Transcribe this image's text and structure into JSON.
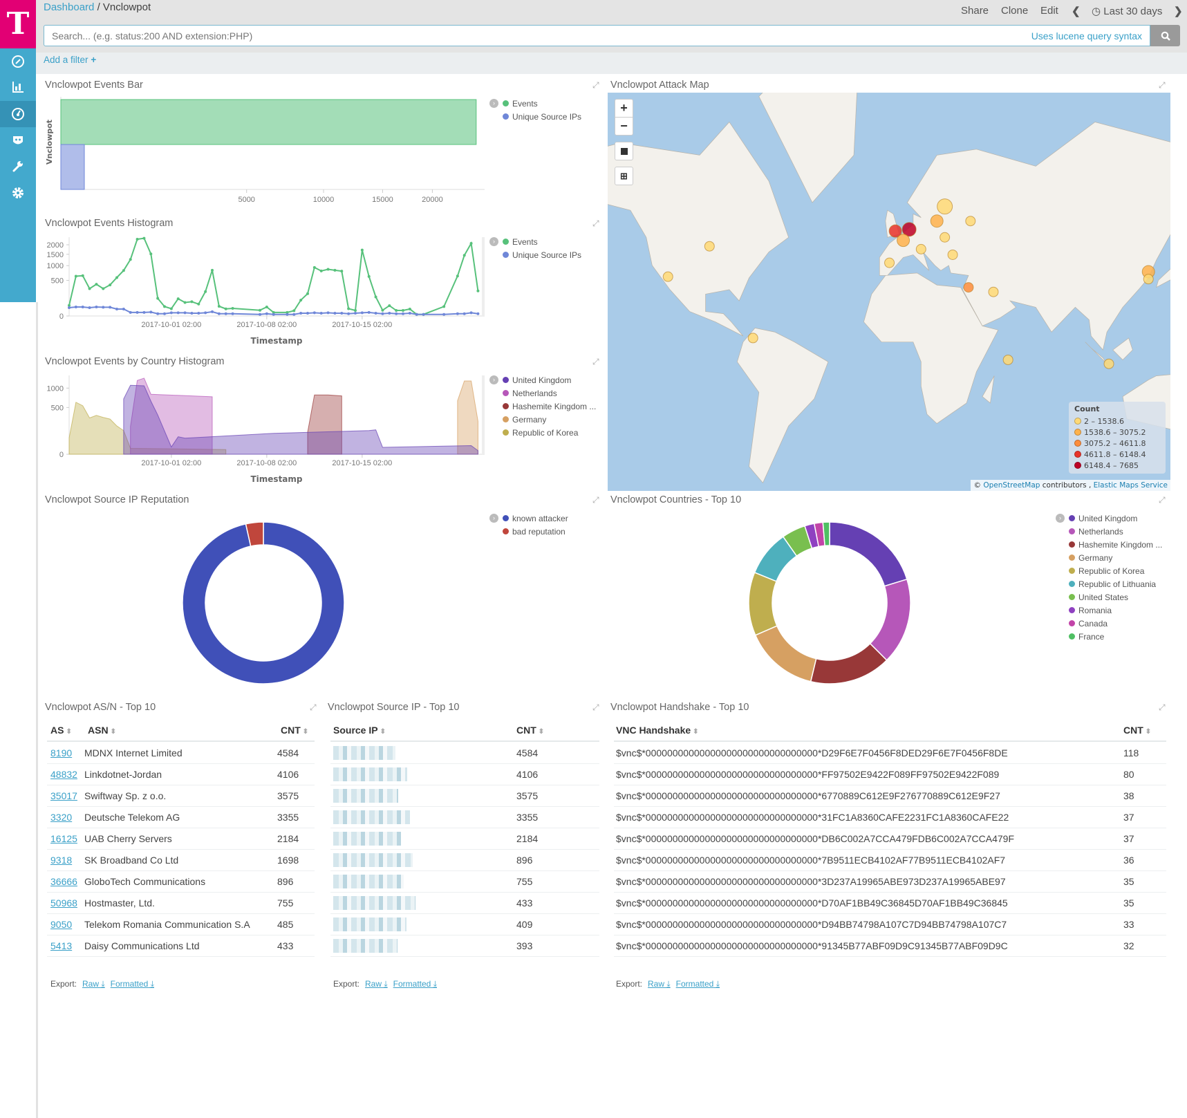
{
  "header": {
    "breadcrumb_root": "Dashboard",
    "breadcrumb_sep": "/",
    "breadcrumb_current": "Vnclowpot",
    "share": "Share",
    "clone": "Clone",
    "edit": "Edit",
    "time_range": "Last 30 days",
    "search_placeholder": "Search... (e.g. status:200 AND extension:PHP)",
    "search_hint": "Uses lucene query syntax",
    "add_filter": "Add a filter"
  },
  "sidebar": {
    "logo": "T",
    "items": [
      "discover",
      "visualize",
      "dashboard",
      "timelion",
      "dev-tools",
      "management"
    ],
    "active": "dashboard",
    "brand_color": "#e20074",
    "accent": "#43a9cd"
  },
  "chart_data": [
    {
      "type": "bar",
      "orientation": "horizontal",
      "title": "Vnclowpot Events Bar",
      "ylabel": "Vnclowpot",
      "categories": [
        "Vnclowpot"
      ],
      "x_scale": "sqrt",
      "xlim": [
        0,
        26100
      ],
      "x_ticks": [
        5000,
        10000,
        15000,
        20000
      ],
      "legend_position": "right",
      "series": [
        {
          "name": "Events",
          "color": "#57c17b",
          "values": [
            25000
          ]
        },
        {
          "name": "Unique Source IPs",
          "color": "#6f87d8",
          "values": [
            80
          ]
        }
      ]
    },
    {
      "type": "line",
      "title": "Vnclowpot Events Histogram",
      "xlabel": "Timestamp",
      "y_scale": "sqrt",
      "ylim": [
        0,
        2450
      ],
      "y_ticks": [
        0,
        500,
        1000,
        1500,
        2000
      ],
      "x_ticks": [
        "2017-10-01 02:00",
        "2017-10-08 02:00",
        "2017-10-15 02:00"
      ],
      "legend_position": "right",
      "x": [
        "2017-09-23 14:00",
        "2017-09-24 02:00",
        "2017-09-24 14:00",
        "2017-09-25 02:00",
        "2017-09-25 14:00",
        "2017-09-26 02:00",
        "2017-09-26 14:00",
        "2017-09-27 02:00",
        "2017-09-27 14:00",
        "2017-09-28 02:00",
        "2017-09-28 14:00",
        "2017-09-29 02:00",
        "2017-09-29 14:00",
        "2017-09-30 02:00",
        "2017-09-30 14:00",
        "2017-10-01 02:00",
        "2017-10-01 14:00",
        "2017-10-02 02:00",
        "2017-10-02 14:00",
        "2017-10-03 02:00",
        "2017-10-03 14:00",
        "2017-10-04 02:00",
        "2017-10-04 14:00",
        "2017-10-05 02:00",
        "2017-10-05 14:00",
        "2017-10-07 14:00",
        "2017-10-08 02:00",
        "2017-10-08 14:00",
        "2017-10-09 14:00",
        "2017-10-10 02:00",
        "2017-10-10 14:00",
        "2017-10-11 02:00",
        "2017-10-11 14:00",
        "2017-10-12 02:00",
        "2017-10-12 14:00",
        "2017-10-13 02:00",
        "2017-10-13 14:00",
        "2017-10-14 02:00",
        "2017-10-14 14:00",
        "2017-10-15 02:00",
        "2017-10-15 14:00",
        "2017-10-16 02:00",
        "2017-10-16 14:00",
        "2017-10-17 02:00",
        "2017-10-17 14:00",
        "2017-10-18 02:00",
        "2017-10-18 14:00",
        "2017-10-19 02:00",
        "2017-10-19 14:00",
        "2017-10-21 02:00",
        "2017-10-22 02:00",
        "2017-10-22 14:00",
        "2017-10-23 02:00",
        "2017-10-23 14:00"
      ],
      "series": [
        {
          "name": "Events",
          "color": "#57c17b",
          "values": [
            44,
            624,
            640,
            295,
            397,
            295,
            380,
            581,
            816,
            1260,
            2323,
            2380,
            1518,
            123,
            35,
            21,
            117,
            72,
            80,
            56,
            234,
            825,
            37,
            20,
            23,
            13,
            32,
            5,
            5,
            11,
            99,
            196,
            927,
            800,
            858,
            825,
            792,
            21,
            12,
            1715,
            616,
            143,
            13,
            42,
            12,
            12,
            19,
            1,
            1,
            35,
            630,
            1451,
            2080,
            247
          ]
        },
        {
          "name": "Unique Source IPs",
          "color": "#6f87d8",
          "values": [
            27,
            32,
            32,
            27,
            32,
            30,
            30,
            19,
            19,
            5,
            5,
            5,
            6,
            2,
            2,
            4,
            4,
            4,
            3,
            3,
            4,
            7,
            2,
            2,
            2,
            1,
            2,
            1,
            1,
            1,
            3,
            3,
            4,
            3,
            4,
            3,
            3,
            2,
            3,
            4,
            5,
            3,
            2,
            3,
            2,
            2,
            3,
            1,
            1,
            1,
            2,
            2,
            4,
            2
          ]
        }
      ]
    },
    {
      "type": "area",
      "mode": "overlap",
      "title": "Vnclowpot Events by Country Histogram",
      "xlabel": "Timestamp",
      "y_scale": "sqrt",
      "ylim": [
        0,
        1420
      ],
      "y_ticks": [
        0,
        500,
        1000
      ],
      "x_ticks": [
        "2017-10-01 02:00",
        "2017-10-08 02:00",
        "2017-10-15 02:00"
      ],
      "legend_position": "right",
      "series": [
        {
          "name": "United Kingdom",
          "color": "#6540b3",
          "points": [
            [
              "2017-09-27 14:00",
              700
            ],
            [
              "2017-09-28 02:00",
              1087
            ],
            [
              "2017-09-28 14:00",
              1080
            ],
            [
              "2017-09-29 02:00",
              1072
            ],
            [
              "2017-09-29 14:00",
              644
            ],
            [
              "2017-09-30 02:00",
              353
            ],
            [
              "2017-09-30 14:00",
              123
            ],
            [
              "2017-10-01 02:00",
              12
            ],
            [
              "2017-10-01 14:00",
              70
            ],
            [
              "2017-10-02 02:00",
              59
            ],
            [
              "2017-10-08 14:00",
              100
            ],
            [
              "2017-10-15 14:00",
              128
            ],
            [
              "2017-10-16 02:00",
              136
            ],
            [
              "2017-10-16 14:00",
              11
            ],
            [
              "2017-10-23 02:00",
              17
            ],
            [
              "2017-10-23 14:00",
              3
            ]
          ]
        },
        {
          "name": "Netherlands",
          "color": "#b657b9",
          "points": [
            [
              "2017-09-28 02:00",
              177
            ],
            [
              "2017-09-28 14:00",
              1244
            ],
            [
              "2017-09-29 02:00",
              1323
            ],
            [
              "2017-09-29 14:00",
              823
            ],
            [
              "2017-10-04 02:00",
              755
            ]
          ]
        },
        {
          "name": "Hashemite Kingdom ...",
          "color": "#983838",
          "points": [
            [
              "2017-10-11 02:00",
              111
            ],
            [
              "2017-10-11 14:00",
              804
            ],
            [
              "2017-10-12 14:00",
              804
            ],
            [
              "2017-10-13 14:00",
              779
            ]
          ]
        },
        {
          "name": "Germany",
          "color": "#d6a062",
          "points": [
            [
              "2017-10-22 02:00",
              655
            ],
            [
              "2017-10-22 14:00",
              1229
            ],
            [
              "2017-10-23 02:00",
              1229
            ],
            [
              "2017-10-23 14:00",
              247
            ]
          ]
        },
        {
          "name": "Republic of Korea",
          "color": "#bfae4e",
          "points": [
            [
              "2017-09-23 14:00",
              61
            ],
            [
              "2017-09-24 02:00",
              617
            ],
            [
              "2017-09-24 14:00",
              538
            ],
            [
              "2017-09-25 02:00",
              301
            ],
            [
              "2017-09-25 14:00",
              345
            ],
            [
              "2017-09-26 02:00",
              310
            ],
            [
              "2017-09-26 14:00",
              283
            ],
            [
              "2017-09-27 02:00",
              183
            ],
            [
              "2017-09-27 14:00",
              128
            ],
            [
              "2017-09-28 02:00",
              8
            ],
            [
              "2017-10-05 02:00",
              5
            ]
          ]
        }
      ]
    },
    {
      "type": "pie",
      "donut": true,
      "title": "Vnclowpot Source IP Reputation",
      "legend_position": "right",
      "labels": [
        "known attacker",
        "bad reputation"
      ],
      "values": [
        96.5,
        3.5
      ],
      "colors": [
        "#4050b8",
        "#c0463c"
      ]
    },
    {
      "type": "pie",
      "donut": true,
      "title": "Vnclowpot Countries - Top 10",
      "legend_position": "right",
      "labels": [
        "United Kingdom",
        "Netherlands",
        "Hashemite Kingdom ...",
        "Germany",
        "Republic of Korea",
        "Republic of Lithuania",
        "United States",
        "Romania",
        "Canada",
        "France"
      ],
      "values": [
        20,
        17,
        16,
        14.5,
        12.5,
        9,
        4.7,
        1.9,
        1.7,
        1.3
      ],
      "colors": [
        "#6540b3",
        "#b657b9",
        "#983838",
        "#d6a062",
        "#bfae4e",
        "#4eb0bd",
        "#79bf4f",
        "#8f41c1",
        "#c244a8",
        "#4fbf63"
      ]
    }
  ],
  "map": {
    "title": "Vnclowpot Attack Map",
    "legend_title": "Count",
    "zoom_in": "+",
    "zoom_out": "−",
    "legend": [
      {
        "label": "2 – 1538.6",
        "color": "#fed976"
      },
      {
        "label": "1538.6 – 3075.2",
        "color": "#feb24c"
      },
      {
        "label": "3075.2 – 4611.8",
        "color": "#fd8d3c"
      },
      {
        "label": "4611.8 – 6148.4",
        "color": "#e8332a"
      },
      {
        "label": "6148.4 – 7685",
        "color": "#bd0026"
      }
    ],
    "attribution": {
      "prefix": "© ",
      "osm": "OpenStreetMap",
      "mid": " contributors , ",
      "ems": "Elastic Maps Service"
    },
    "markers": [
      {
        "lat": 47,
        "lon": -95,
        "bucket": 0
      },
      {
        "lat": 35.5,
        "lon": -116,
        "bucket": 0
      },
      {
        "lat": 7,
        "lon": -73,
        "bucket": 0
      },
      {
        "lat": 52,
        "lon": -1,
        "bucket": 3
      },
      {
        "lat": 52.5,
        "lon": 6,
        "bucket": 4
      },
      {
        "lat": 49,
        "lon": 3,
        "bucket": 1
      },
      {
        "lat": 41,
        "lon": -4,
        "bucket": 0
      },
      {
        "lat": 46,
        "lon": 12,
        "bucket": 0
      },
      {
        "lat": 55,
        "lon": 20,
        "bucket": 1
      },
      {
        "lat": 59,
        "lon": 24,
        "bucket": 0
      },
      {
        "lat": 55,
        "lon": 37,
        "bucket": 0
      },
      {
        "lat": 50,
        "lon": 24,
        "bucket": 0
      },
      {
        "lat": 44,
        "lon": 28,
        "bucket": 0
      },
      {
        "lat": 31,
        "lon": 36,
        "bucket": 2
      },
      {
        "lat": 29,
        "lon": 48.6,
        "bucket": 0
      },
      {
        "lat": -4,
        "lon": 56,
        "bucket": 0
      },
      {
        "lat": -6,
        "lon": 107,
        "bucket": 0
      },
      {
        "lat": 37.5,
        "lon": 127,
        "bucket": 1
      },
      {
        "lat": 34.5,
        "lon": 127,
        "bucket": 0
      }
    ]
  },
  "tables": {
    "asn": {
      "title": "Vnclowpot AS/N - Top 10",
      "headers": [
        "AS",
        "ASN",
        "CNT"
      ],
      "rows": [
        [
          "8190",
          "MDNX Internet Limited",
          "4584"
        ],
        [
          "48832",
          "Linkdotnet-Jordan",
          "4106"
        ],
        [
          "35017",
          "Swiftway Sp. z o.o.",
          "3575"
        ],
        [
          "3320",
          "Deutsche Telekom AG",
          "3355"
        ],
        [
          "16125",
          "UAB Cherry Servers",
          "2184"
        ],
        [
          "9318",
          "SK Broadband Co Ltd",
          "1698"
        ],
        [
          "36666",
          "GloboTech Communications",
          "896"
        ],
        [
          "50968",
          "Hostmaster, Ltd.",
          "755"
        ],
        [
          "9050",
          "Telekom Romania Communication S.A",
          "485"
        ],
        [
          "5413",
          "Daisy Communications Ltd",
          "433"
        ]
      ]
    },
    "source_ip": {
      "title": "Vnclowpot Source IP - Top 10",
      "headers": [
        "Source IP",
        "CNT"
      ],
      "counts": [
        "4584",
        "4106",
        "3575",
        "3355",
        "2184",
        "896",
        "755",
        "433",
        "409",
        "393"
      ]
    },
    "handshake": {
      "title": "Vnclowpot Handshake - Top 10",
      "headers": [
        "VNC Handshake",
        "CNT"
      ],
      "rows": [
        [
          "$vnc$*00000000000000000000000000000000*D29F6E7F0456F8DED29F6E7F0456F8DE",
          "118"
        ],
        [
          "$vnc$*00000000000000000000000000000000*FF97502E9422F089FF97502E9422F089",
          "80"
        ],
        [
          "$vnc$*00000000000000000000000000000000*6770889C612E9F276770889C612E9F27",
          "38"
        ],
        [
          "$vnc$*00000000000000000000000000000000*31FC1A8360CAFE2231FC1A8360CAFE22",
          "37"
        ],
        [
          "$vnc$*00000000000000000000000000000000*DB6C002A7CCA479FDB6C002A7CCA479F",
          "37"
        ],
        [
          "$vnc$*00000000000000000000000000000000*7B9511ECB4102AF77B9511ECB4102AF7",
          "36"
        ],
        [
          "$vnc$*00000000000000000000000000000000*3D237A19965ABE973D237A19965ABE97",
          "35"
        ],
        [
          "$vnc$*00000000000000000000000000000000*D70AF1BB49C36845D70AF1BB49C36845",
          "35"
        ],
        [
          "$vnc$*00000000000000000000000000000000*D94BB74798A107C7D94BB74798A107C7",
          "33"
        ],
        [
          "$vnc$*00000000000000000000000000000000*91345B77ABF09D9C91345B77ABF09D9C",
          "32"
        ]
      ]
    },
    "export_label": "Export:",
    "raw": "Raw",
    "formatted": "Formatted"
  }
}
